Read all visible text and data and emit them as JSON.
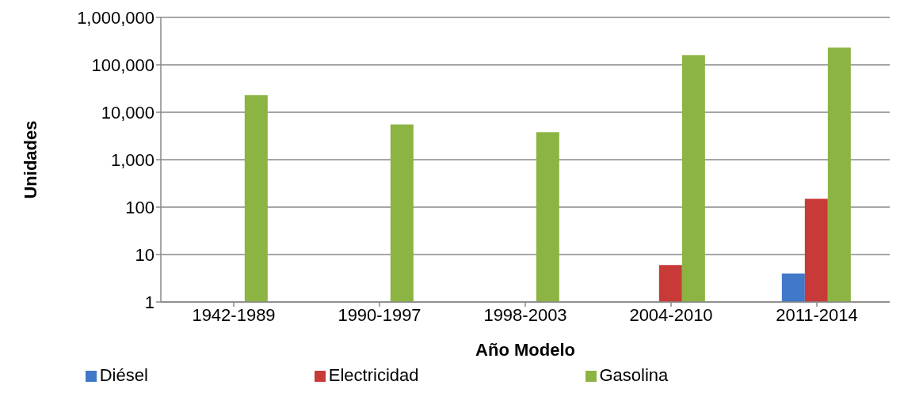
{
  "chart_data": {
    "type": "bar",
    "xlabel": "Año Modelo",
    "ylabel": "Unidades",
    "categories": [
      "1942-1989",
      "1990-1997",
      "1998-2003",
      "2004-2010",
      "2011-2014"
    ],
    "series": [
      {
        "name": "Diésel",
        "color": "#4178c8",
        "values": [
          null,
          null,
          null,
          null,
          4
        ]
      },
      {
        "name": "Electricidad",
        "color": "#c83a38",
        "values": [
          null,
          null,
          null,
          6,
          150
        ]
      },
      {
        "name": "Gasolina",
        "color": "#8cb442",
        "values": [
          23000,
          5500,
          3800,
          160000,
          230000
        ]
      }
    ],
    "log": "y",
    "ylim": [
      1,
      1000000
    ],
    "yticks": [
      {
        "value": 1,
        "label": "1"
      },
      {
        "value": 10,
        "label": "10"
      },
      {
        "value": 100,
        "label": "100"
      },
      {
        "value": 1000,
        "label": "1,000"
      },
      {
        "value": 10000,
        "label": "10,000"
      },
      {
        "value": 100000,
        "label": "100,000"
      },
      {
        "value": 1000000,
        "label": "1,000,000"
      }
    ],
    "grid": "y",
    "legend": "bottom"
  }
}
